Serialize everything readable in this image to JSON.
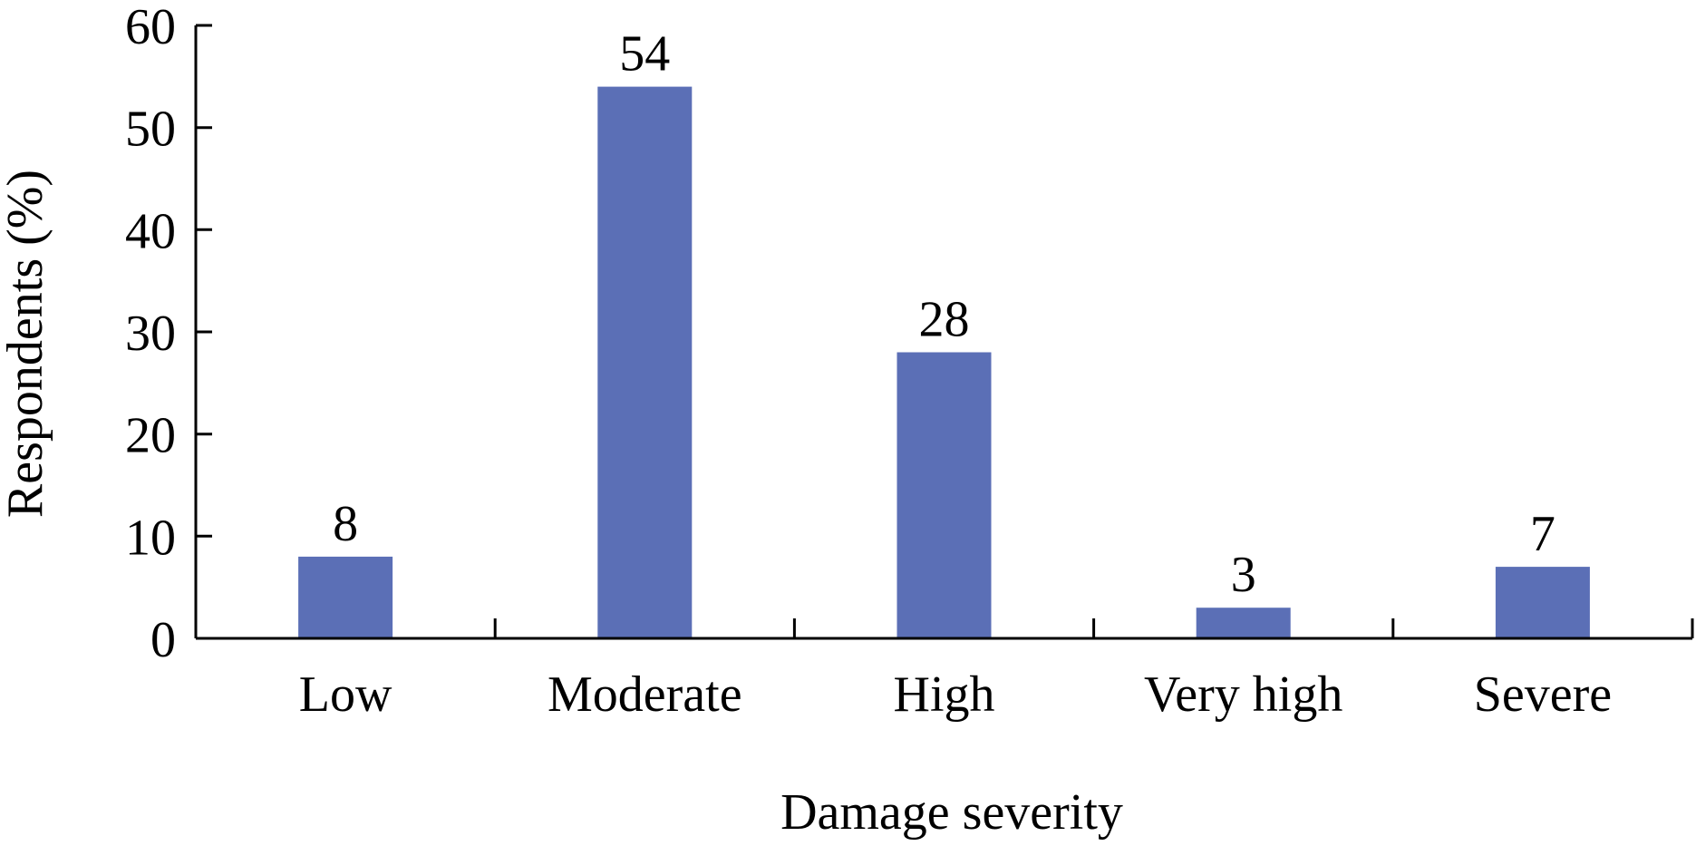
{
  "chart_data": {
    "type": "bar",
    "categories": [
      "Low",
      "Moderate",
      "High",
      "Very high",
      "Severe"
    ],
    "values": [
      8,
      54,
      28,
      3,
      7
    ],
    "data_labels": [
      "8",
      "54",
      "28",
      "3",
      "7"
    ],
    "title": "",
    "xlabel": "Damage severity",
    "ylabel": "Respondents (%)",
    "ylim": [
      0,
      60
    ],
    "yticks": [
      0,
      10,
      20,
      30,
      40,
      50,
      60
    ],
    "grid": false,
    "legend": "none",
    "bar_color": "#5B6FB6",
    "axis_color": "#000000"
  }
}
